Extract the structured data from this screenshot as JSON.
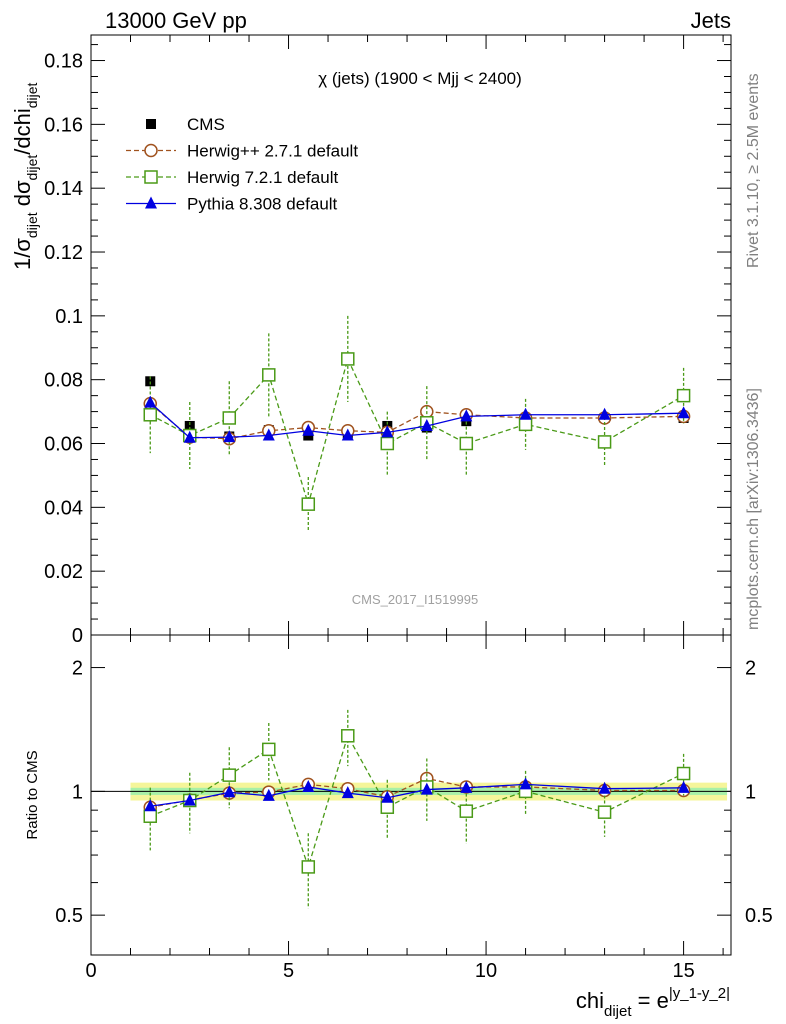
{
  "header": {
    "left": "13000 GeV pp",
    "right": "Jets"
  },
  "side_labels": {
    "rivet": "Rivet 3.1.10, ≥ 2.5M events",
    "mcplots": "mcplots.cern.ch [arXiv:1306.3436]"
  },
  "chart_data": {
    "type": "line",
    "title": "χ (jets) (1900 < Mjj < 2400)",
    "watermark": "CMS_2017_I1519995",
    "xlabel": "chi_dijet = e^|y_1-y_2|",
    "xlabel_parts": {
      "base": "chi",
      "sub": "dijet",
      "eq": " = e",
      "sup": "|y_1-y_2|"
    },
    "ylabel_parts": [
      "1/σ",
      "dijet",
      " dσ",
      "dijet",
      "/dchi",
      "dijet"
    ],
    "ratio_ylabel": "Ratio to CMS",
    "xlim": [
      0,
      16.2
    ],
    "ylim": [
      0,
      0.188
    ],
    "ratio_ylim": [
      0.4,
      2.4
    ],
    "ratio_log": true,
    "x_ticks": [
      "0",
      "5",
      "10",
      "15"
    ],
    "y_ticks": [
      "0",
      "0.02",
      "0.04",
      "0.06",
      "0.08",
      "0.1",
      "0.12",
      "0.14",
      "0.16",
      "0.18"
    ],
    "ratio_ticks": [
      "0.5",
      "1",
      "2"
    ],
    "x": [
      1.5,
      2.5,
      3.5,
      4.5,
      5.5,
      6.5,
      7.5,
      8.5,
      9.5,
      11,
      13,
      15
    ],
    "xerr": [
      [
        1,
        2
      ],
      [
        2,
        3
      ],
      [
        3,
        4
      ],
      [
        4,
        5
      ],
      [
        5,
        6
      ],
      [
        6,
        7
      ],
      [
        7,
        8
      ],
      [
        8,
        9
      ],
      [
        9,
        10
      ],
      [
        10,
        12
      ],
      [
        12,
        14
      ],
      [
        14,
        16.1
      ]
    ],
    "cms": {
      "name": "CMS",
      "values": [
        0.0795,
        0.0655,
        0.0622,
        0.0642,
        0.0625,
        0.0632,
        0.0655,
        0.065,
        0.067,
        0.066,
        0.068,
        0.068
      ],
      "band_inner": 0.02,
      "band_outer": 0.05
    },
    "series": [
      {
        "name": "Herwig++ 2.7.1 default",
        "color": "#a0521e",
        "marker": "open-circle",
        "dashed": true,
        "values": [
          0.0725,
          0.062,
          0.0615,
          0.064,
          0.065,
          0.064,
          0.0635,
          0.07,
          0.069,
          0.068,
          0.068,
          0.0685
        ],
        "errors": [
          0.0018,
          0.0012,
          0.0012,
          0.0012,
          0.0012,
          0.0012,
          0.0012,
          0.0018,
          0.001,
          0.001,
          0.001,
          0.001
        ],
        "ratio": [
          0.915,
          0.952,
          0.99,
          0.996,
          1.04,
          1.015,
          0.97,
          1.075,
          1.025,
          1.025,
          1.005,
          1.005
        ]
      },
      {
        "name": "Herwig 7.2.1 default",
        "color": "#4a9a17",
        "marker": "open-square",
        "dashed": true,
        "values": [
          0.069,
          0.0625,
          0.068,
          0.0815,
          0.041,
          0.0865,
          0.06,
          0.0665,
          0.06,
          0.066,
          0.0605,
          0.075
        ],
        "errors": [
          0.012,
          0.0105,
          0.0115,
          0.013,
          0.0085,
          0.0135,
          0.01,
          0.0115,
          0.01,
          0.008,
          0.0078,
          0.0087
        ],
        "ratio": [
          0.87,
          0.95,
          1.095,
          1.265,
          0.655,
          1.365,
          0.915,
          1.025,
          0.895,
          1.0,
          0.89,
          1.105
        ]
      },
      {
        "name": "Pythia 8.308 default",
        "color": "#0000e0",
        "marker": "filled-triangle",
        "dashed": false,
        "values": [
          0.0728,
          0.0618,
          0.062,
          0.0625,
          0.064,
          0.0625,
          0.0635,
          0.0655,
          0.0685,
          0.069,
          0.069,
          0.0695
        ],
        "errors": [
          0.001,
          0.0008,
          0.0008,
          0.0008,
          0.0008,
          0.0008,
          0.0008,
          0.0008,
          0.0008,
          0.0008,
          0.0008,
          0.0008
        ],
        "ratio": [
          0.92,
          0.95,
          0.995,
          0.975,
          1.025,
          0.99,
          0.965,
          1.01,
          1.02,
          1.04,
          1.015,
          1.02
        ]
      }
    ],
    "legend_position": "top-left"
  }
}
